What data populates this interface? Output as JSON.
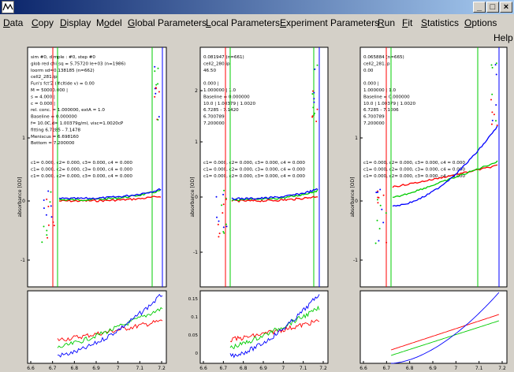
{
  "window": {
    "minimize_glyph": "_",
    "maximize_glyph": "□",
    "close_glyph": "×"
  },
  "menu": [
    {
      "label": "Data",
      "u": "D"
    },
    {
      "label": "Copy",
      "u": "C"
    },
    {
      "label": "Display",
      "u": "D"
    },
    {
      "label": "Model",
      "u": "o"
    },
    {
      "label": "Global Parameters",
      "u": "G"
    },
    {
      "label": "Local Parameters",
      "u": "L"
    },
    {
      "label": "Experiment Parameters",
      "u": "E"
    },
    {
      "label": "Run",
      "u": "R"
    },
    {
      "label": "Fit",
      "u": "F"
    },
    {
      "label": "Statistics",
      "u": "S"
    },
    {
      "label": "Options",
      "u": "O"
    }
  ],
  "help_label": "Help",
  "colors": {
    "red": "#ff0000",
    "green": "#00cc00",
    "blue": "#0000ff",
    "magenta": "#ff00ff",
    "plot_bg": "#ffffff"
  },
  "panels": [
    {
      "info_lines": [
        "sim #0, dimple : #0, step #0",
        "glob red chi(sq = 5.75720 le+03 (n=1986)",
        "loorm sd=0.138185 (n=662)",
        "cell2_281.ip",
        "Fun's fct'Z (#cltide v) = 0.00",
        "M = 50000.000 |",
        "s = 4.000 |",
        "c = 0.000 |",
        "rel. conc. = 1.000000, extA = 1.0",
        "Baseline = 0.000000",
        "f= 10.0C,d= 1.00379g/ml, visc=1.0020cP",
        "fitting 6.7285 - 7.1478",
        "Meniscus = 6.698160",
        "Bottom = 7.200000"
      ],
      "coef_lines": [
        "c1= 0.000, c2= 0.000, c3= 0.000, c4 = 0.000",
        "c1= 0.000, c2= 0.000, c3= 0.000, c4 = 0.000",
        "c1= 0.000, c2= 0.000, c3= 0.000, c4 = 0.000"
      ],
      "y_label": "absorbance [OD]",
      "y_ticks": [
        "1",
        "0",
        "-1"
      ],
      "resid_y_ticks": [],
      "x_ticks": [
        "6.6",
        "6.7",
        "6.8",
        "6.9",
        "7",
        "7.1",
        "7.2"
      ]
    },
    {
      "info_lines": [
        "0.081947 (n=661)",
        "cell2_280.ip",
        "46.50",
        "",
        "0.000 |",
        "1.000000 | 1.0",
        "Baseline = 0.000000",
        "10.0 | 1.00379 | 1.0020",
        "6.7285 - 7.1420",
        "6.700789",
        "7.200000"
      ],
      "coef_lines": [
        "c1= 0.000, c2= 0.000, c3= 0.000, c4 = 0.000",
        "c1= 0.000, c2= 0.000, c3= 0.000, c4 = 0.000",
        "c1= 0.000, c2= 0.000, c3= 0.000, c4 = 0.000"
      ],
      "y_label": "absorbance [OD]",
      "y_ticks": [
        "2",
        "1",
        "0",
        "-1"
      ],
      "resid_y_ticks": [
        "0.15",
        "0.1",
        "0.05",
        "0"
      ],
      "x_ticks": [
        "6.6",
        "6.7",
        "6.8",
        "6.9",
        "7",
        "7.1",
        "7.2"
      ]
    },
    {
      "info_lines": [
        "0.065884 (n=665)",
        "cell2_281.ip",
        "0.00",
        "",
        "0.000 |",
        "1.000000 | 1.0",
        "Baseline = 0.000000",
        "10.0 | 1.00379 | 1.0020",
        "6.7285 - 7.1006",
        "6.700789",
        "7.200000"
      ],
      "coef_lines": [
        "c1= 0.000, c2= 0.000, c3= 0.000, c4 = 0.000",
        "c1= 0.000, c2= 0.000, c3= 0.000, c4 = 0.000",
        "c1= 0.000, c2= 0.000, c3= 0.000, c4 = 0.000"
      ],
      "y_label": "absorbance [OD]",
      "y_ticks": [
        "1",
        "0",
        "-1"
      ],
      "resid_y_ticks": [],
      "x_ticks": [
        "6.6",
        "6.7",
        "6.8",
        "6.9",
        "7",
        "7.1",
        "7.2"
      ]
    }
  ]
}
